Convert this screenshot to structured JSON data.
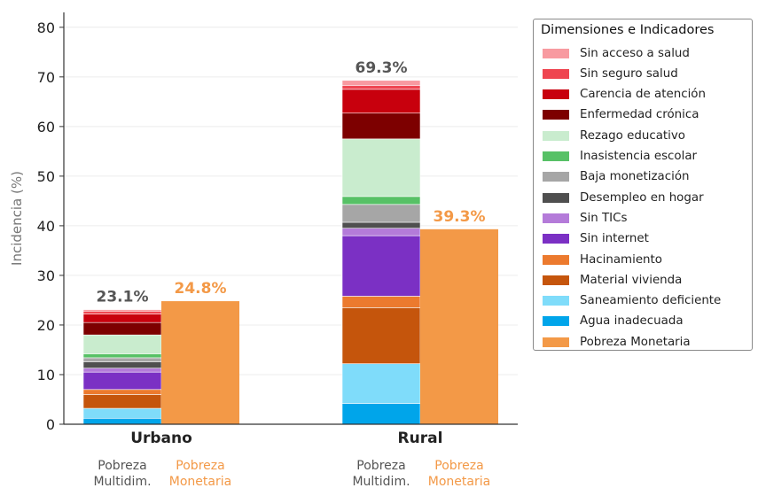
{
  "colors": {
    "sin_acceso_salud": "#f89aa0",
    "sin_seguro_salud": "#ef4550",
    "carencia_atencion": "#c8000d",
    "enfermedad_cronica": "#7d0000",
    "rezago_educativo": "#c9ecce",
    "inasistencia_escolar": "#57c166",
    "baja_monetizacion": "#a6a6a6",
    "desempleo_hogar": "#4f4f4f",
    "sin_tics": "#b47bd9",
    "sin_internet": "#7b30c4",
    "hacinamiento": "#ec7a2e",
    "material_vivienda": "#c5550c",
    "saneamiento_deficiente": "#7fdcfa",
    "agua_inadecuada": "#00a5ea",
    "pobreza_monetaria": "#f39947",
    "monetary_label": "#f39947",
    "multi_label": "#555555"
  },
  "chart_data": {
    "type": "bar",
    "stacked": true,
    "ylabel": "Incidencia (%)",
    "ylim": [
      0,
      83
    ],
    "yticks": [
      0,
      10,
      20,
      30,
      40,
      50,
      60,
      70,
      80
    ],
    "grid": "horizontal",
    "legend_position": "right",
    "categories": [
      "Urbano",
      "Rural"
    ],
    "sub_labels": {
      "multi": "Pobreza\nMultidim.",
      "monetary": "Pobreza\nMonetaria"
    },
    "multidimensional_totals": [
      "23.1%",
      "69.3%"
    ],
    "monetary_totals": [
      "24.8%",
      "39.3%"
    ],
    "stack_order": [
      "agua_inadecuada",
      "saneamiento_deficiente",
      "material_vivienda",
      "hacinamiento",
      "sin_internet",
      "sin_tics",
      "desempleo_hogar",
      "baja_monetizacion",
      "inasistencia_escolar",
      "rezago_educativo",
      "enfermedad_cronica",
      "carencia_atencion",
      "sin_seguro_salud",
      "sin_acceso_salud"
    ],
    "multidimensional_series": [
      {
        "key": "agua_inadecuada",
        "values": [
          1.2,
          4.2
        ]
      },
      {
        "key": "saneamiento_deficiente",
        "values": [
          2.0,
          8.0
        ]
      },
      {
        "key": "material_vivienda",
        "values": [
          2.8,
          11.3
        ]
      },
      {
        "key": "hacinamiento",
        "values": [
          1.0,
          2.3
        ]
      },
      {
        "key": "sin_internet",
        "values": [
          3.5,
          12.2
        ]
      },
      {
        "key": "sin_tics",
        "values": [
          0.8,
          1.5
        ]
      },
      {
        "key": "desempleo_hogar",
        "values": [
          1.3,
          1.2
        ]
      },
      {
        "key": "baja_monetizacion",
        "values": [
          0.8,
          3.6
        ]
      },
      {
        "key": "inasistencia_escolar",
        "values": [
          0.8,
          1.6
        ]
      },
      {
        "key": "rezago_educativo",
        "values": [
          3.8,
          11.6
        ]
      },
      {
        "key": "enfermedad_cronica",
        "values": [
          2.5,
          5.2
        ]
      },
      {
        "key": "carencia_atencion",
        "values": [
          1.7,
          4.8
        ]
      },
      {
        "key": "sin_seguro_salud",
        "values": [
          0.6,
          0.8
        ]
      },
      {
        "key": "sin_acceso_salud",
        "values": [
          0.3,
          1.0
        ]
      }
    ],
    "monetary_values": [
      24.8,
      39.3
    ]
  },
  "legend": {
    "title": "Dimensiones e Indicadores",
    "items": [
      {
        "label": "Sin acceso a salud",
        "key": "sin_acceso_salud"
      },
      {
        "label": "Sin seguro salud",
        "key": "sin_seguro_salud"
      },
      {
        "label": "Carencia de atención",
        "key": "carencia_atencion"
      },
      {
        "label": "Enfermedad crónica",
        "key": "enfermedad_cronica"
      },
      {
        "label": "Rezago educativo",
        "key": "rezago_educativo"
      },
      {
        "label": "Inasistencia escolar",
        "key": "inasistencia_escolar"
      },
      {
        "label": "Baja monetización",
        "key": "baja_monetizacion"
      },
      {
        "label": "Desempleo en hogar",
        "key": "desempleo_hogar"
      },
      {
        "label": "Sin TICs",
        "key": "sin_tics"
      },
      {
        "label": "Sin internet",
        "key": "sin_internet"
      },
      {
        "label": "Hacinamiento",
        "key": "hacinamiento"
      },
      {
        "label": "Material vivienda",
        "key": "material_vivienda"
      },
      {
        "label": "Saneamiento deficiente",
        "key": "saneamiento_deficiente"
      },
      {
        "label": "Agua inadecuada",
        "key": "agua_inadecuada"
      },
      {
        "label": "Pobreza Monetaria",
        "key": "pobreza_monetaria"
      }
    ]
  }
}
